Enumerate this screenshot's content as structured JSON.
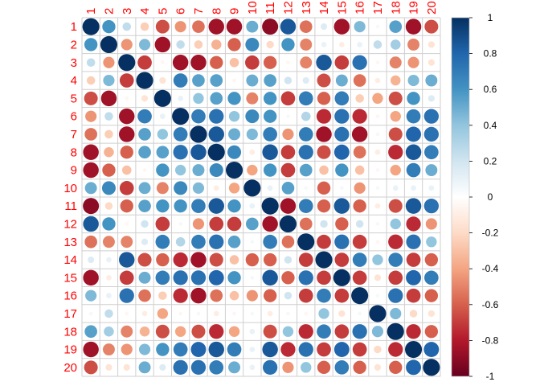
{
  "chart_data": {
    "type": "heatmap",
    "variables": [
      "1",
      "2",
      "3",
      "4",
      "5",
      "6",
      "7",
      "8",
      "9",
      "10",
      "11",
      "12",
      "13",
      "14",
      "15",
      "16",
      "17",
      "18",
      "19",
      "20"
    ],
    "matrix": [
      [
        1.0,
        0.6,
        0.25,
        -0.25,
        -0.65,
        -0.45,
        -0.55,
        -0.85,
        -0.85,
        0.5,
        -0.9,
        0.85,
        -0.55,
        0.15,
        -0.85,
        0.45,
        0.05,
        0.55,
        -0.85,
        -0.65
      ],
      [
        0.6,
        1.0,
        -0.45,
        0.45,
        -0.85,
        0.25,
        -0.25,
        -0.35,
        -0.6,
        0.65,
        -0.2,
        0.6,
        -0.5,
        0.1,
        -0.1,
        0.1,
        0.25,
        0.35,
        -0.5,
        -0.15
      ],
      [
        0.25,
        -0.45,
        1.0,
        -0.7,
        -0.05,
        -0.85,
        -0.85,
        -0.6,
        -0.3,
        -0.7,
        -0.6,
        -0.05,
        -0.5,
        0.85,
        -0.7,
        0.75,
        -0.05,
        -0.5,
        -0.45,
        -0.15
      ],
      [
        -0.25,
        0.45,
        -0.7,
        1.0,
        -0.15,
        0.7,
        0.55,
        0.55,
        -0.05,
        0.5,
        0.55,
        0.2,
        0.15,
        -0.65,
        0.5,
        -0.55,
        -0.1,
        -0.35,
        0.45,
        0.5
      ],
      [
        -0.65,
        -0.85,
        -0.05,
        -0.15,
        1.0,
        0.1,
        0.4,
        0.55,
        0.6,
        -0.5,
        0.6,
        -0.7,
        0.7,
        -0.6,
        0.7,
        -0.25,
        -0.4,
        -0.65,
        0.6,
        0.15
      ],
      [
        -0.45,
        0.25,
        -0.85,
        0.7,
        0.1,
        1.0,
        0.7,
        0.75,
        0.4,
        0.65,
        0.6,
        0.05,
        0.3,
        -0.75,
        0.75,
        -0.75,
        -0.05,
        -0.4,
        0.7,
        0.75
      ],
      [
        -0.55,
        -0.25,
        -0.85,
        0.55,
        0.4,
        0.7,
        1.0,
        0.85,
        0.5,
        0.45,
        0.7,
        -0.45,
        0.7,
        -0.85,
        0.75,
        -0.85,
        0.05,
        -0.65,
        0.8,
        0.75
      ],
      [
        -0.85,
        -0.35,
        -0.6,
        0.55,
        0.55,
        0.75,
        0.85,
        1.0,
        0.65,
        -0.1,
        0.85,
        -0.7,
        0.75,
        -0.65,
        0.8,
        -0.55,
        -0.1,
        -0.75,
        0.85,
        0.7
      ],
      [
        -0.85,
        -0.6,
        -0.3,
        -0.05,
        0.6,
        0.4,
        0.5,
        0.65,
        1.0,
        -0.4,
        0.6,
        -0.7,
        0.55,
        -0.3,
        0.6,
        -0.3,
        -0.05,
        -0.4,
        0.7,
        0.5
      ],
      [
        0.5,
        0.65,
        -0.7,
        0.5,
        -0.5,
        0.65,
        0.45,
        -0.1,
        -0.4,
        1.0,
        0.1,
        0.55,
        0.05,
        -0.6,
        0.05,
        -0.45,
        0.05,
        0.1,
        0.1,
        0.1
      ],
      [
        -0.9,
        -0.2,
        -0.6,
        0.55,
        0.6,
        0.6,
        0.7,
        0.85,
        0.6,
        0.1,
        1.0,
        -0.85,
        0.7,
        -0.6,
        0.85,
        -0.6,
        -0.1,
        -0.65,
        0.85,
        0.75
      ],
      [
        0.85,
        0.6,
        -0.05,
        0.2,
        -0.7,
        0.05,
        -0.45,
        -0.7,
        -0.7,
        0.55,
        -0.85,
        1.0,
        -0.55,
        0.2,
        -0.6,
        0.2,
        0.05,
        0.4,
        -0.75,
        -0.45
      ],
      [
        -0.55,
        -0.5,
        -0.5,
        0.15,
        0.7,
        0.3,
        0.7,
        0.75,
        0.55,
        0.05,
        0.7,
        -0.55,
        1.0,
        -0.7,
        0.75,
        -0.7,
        -0.05,
        -0.75,
        0.75,
        0.4
      ],
      [
        0.15,
        0.1,
        0.85,
        -0.65,
        -0.6,
        -0.75,
        -0.85,
        -0.65,
        -0.3,
        -0.6,
        -0.6,
        0.2,
        -0.7,
        1.0,
        -0.7,
        0.7,
        0.4,
        0.7,
        -0.7,
        -0.6
      ],
      [
        -0.85,
        -0.1,
        -0.7,
        0.5,
        0.7,
        0.75,
        0.75,
        0.8,
        0.6,
        0.05,
        0.85,
        -0.6,
        0.75,
        -0.7,
        1.0,
        -0.7,
        -0.15,
        -0.7,
        0.8,
        0.7
      ],
      [
        0.45,
        0.1,
        0.75,
        -0.55,
        -0.25,
        -0.75,
        -0.85,
        -0.55,
        -0.3,
        -0.45,
        -0.6,
        0.2,
        -0.7,
        0.7,
        -0.7,
        1.0,
        0.05,
        0.75,
        -0.7,
        -0.6
      ],
      [
        0.05,
        0.25,
        -0.05,
        -0.1,
        -0.4,
        -0.05,
        0.05,
        -0.1,
        -0.05,
        0.05,
        -0.1,
        0.05,
        -0.05,
        0.4,
        -0.15,
        0.05,
        1.0,
        0.45,
        -0.2,
        -0.15
      ],
      [
        0.55,
        0.35,
        -0.5,
        -0.35,
        -0.65,
        -0.4,
        -0.65,
        -0.75,
        -0.4,
        0.1,
        -0.65,
        0.4,
        -0.75,
        0.7,
        -0.7,
        0.75,
        0.45,
        1.0,
        -0.75,
        -0.6
      ],
      [
        -0.85,
        -0.5,
        -0.45,
        0.45,
        0.6,
        0.7,
        0.8,
        0.85,
        0.7,
        0.1,
        0.85,
        -0.75,
        0.75,
        -0.7,
        0.8,
        -0.7,
        -0.2,
        -0.75,
        1.0,
        0.8
      ],
      [
        -0.65,
        -0.15,
        -0.15,
        0.5,
        0.15,
        0.75,
        0.75,
        0.7,
        0.5,
        0.1,
        0.75,
        -0.45,
        0.4,
        -0.6,
        0.7,
        -0.6,
        -0.15,
        -0.6,
        0.8,
        1.0
      ]
    ],
    "colorbar": {
      "ticks": [
        1,
        0.8,
        0.6,
        0.4,
        0.2,
        0,
        -0.2,
        -0.4,
        -0.6,
        -0.8,
        -1
      ],
      "tick_labels": [
        "1",
        "0.8",
        "0.6",
        "0.4",
        "0.2",
        "0",
        "-0.2",
        "-0.4",
        "-0.6",
        "-0.8",
        "-1"
      ],
      "range": [
        -1,
        1
      ]
    },
    "palette": [
      "#67001F",
      "#B2182B",
      "#D6604D",
      "#F4A582",
      "#FDDBC7",
      "#FFFFFF",
      "#D1E5F0",
      "#92C5DE",
      "#4393C3",
      "#2166AC",
      "#053061"
    ],
    "label_color": "#ff0000",
    "grid": true,
    "marker": "circle"
  }
}
